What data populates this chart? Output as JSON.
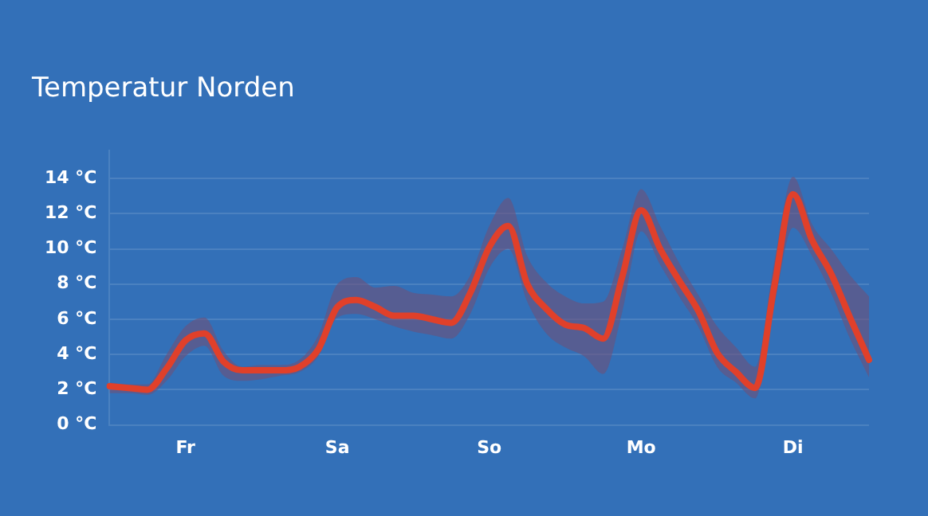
{
  "chart_data": {
    "type": "line",
    "title": "Temperatur Norden",
    "categories": [
      null,
      null,
      null,
      null,
      "Fr",
      null,
      null,
      null,
      null,
      null,
      null,
      null,
      "Sa",
      null,
      null,
      null,
      null,
      null,
      null,
      null,
      "So",
      null,
      null,
      null,
      null,
      null,
      null,
      null,
      "Mo",
      null,
      null,
      null,
      null,
      null,
      null,
      null,
      "Di",
      null,
      null,
      null,
      null
    ],
    "series": [
      {
        "color": "#e0402a",
        "values": [
          2.2,
          2.1,
          2.0,
          3.2,
          4.8,
          5.2,
          3.6,
          3.1,
          3.1,
          3.1,
          3.3,
          4.3,
          6.7,
          7.1,
          6.7,
          6.2,
          6.2,
          6.0,
          5.8,
          7.5,
          10.1,
          11.3,
          8.0,
          6.6,
          5.7,
          5.5,
          4.9,
          8.4,
          12.2,
          10.0,
          8.2,
          6.5,
          4.1,
          3.0,
          2.1,
          7.8,
          13.1,
          10.5,
          8.6,
          6.1,
          3.7
        ],
        "lower": [
          1.8,
          1.8,
          1.7,
          2.5,
          3.9,
          4.5,
          2.8,
          2.5,
          2.6,
          2.8,
          3.0,
          3.9,
          6.1,
          6.3,
          6.0,
          5.6,
          5.3,
          5.1,
          4.9,
          6.3,
          8.9,
          10.0,
          7.0,
          5.2,
          4.4,
          3.9,
          2.9,
          6.4,
          11.0,
          9.1,
          7.3,
          5.6,
          3.3,
          2.4,
          1.5,
          6.7,
          11.2,
          9.6,
          7.5,
          4.9,
          2.7
        ],
        "upper": [
          2.4,
          2.3,
          2.3,
          4.0,
          5.6,
          6.1,
          4.2,
          3.3,
          3.4,
          3.4,
          3.7,
          5.1,
          8.0,
          8.4,
          7.8,
          7.9,
          7.5,
          7.4,
          7.3,
          8.5,
          11.3,
          12.9,
          9.6,
          8.1,
          7.3,
          6.9,
          7.0,
          10.0,
          13.4,
          11.3,
          9.2,
          7.4,
          5.6,
          4.4,
          3.3,
          9.2,
          14.1,
          11.4,
          10.0,
          8.5,
          7.3
        ]
      }
    ],
    "ylim": [
      0,
      15.6
    ],
    "yticks": [
      {
        "value": 0,
        "label": "0 °C"
      },
      {
        "value": 2,
        "label": "2 °C"
      },
      {
        "value": 4,
        "label": "4 °C"
      },
      {
        "value": 6,
        "label": "6 °C"
      },
      {
        "value": 8,
        "label": "8 °C"
      },
      {
        "value": 10,
        "label": "10 °C"
      },
      {
        "value": 12,
        "label": "12 °C"
      },
      {
        "value": 14,
        "label": "14 °C"
      }
    ],
    "grid": "y",
    "legend": false,
    "marker": "none",
    "line_style": "solid"
  }
}
